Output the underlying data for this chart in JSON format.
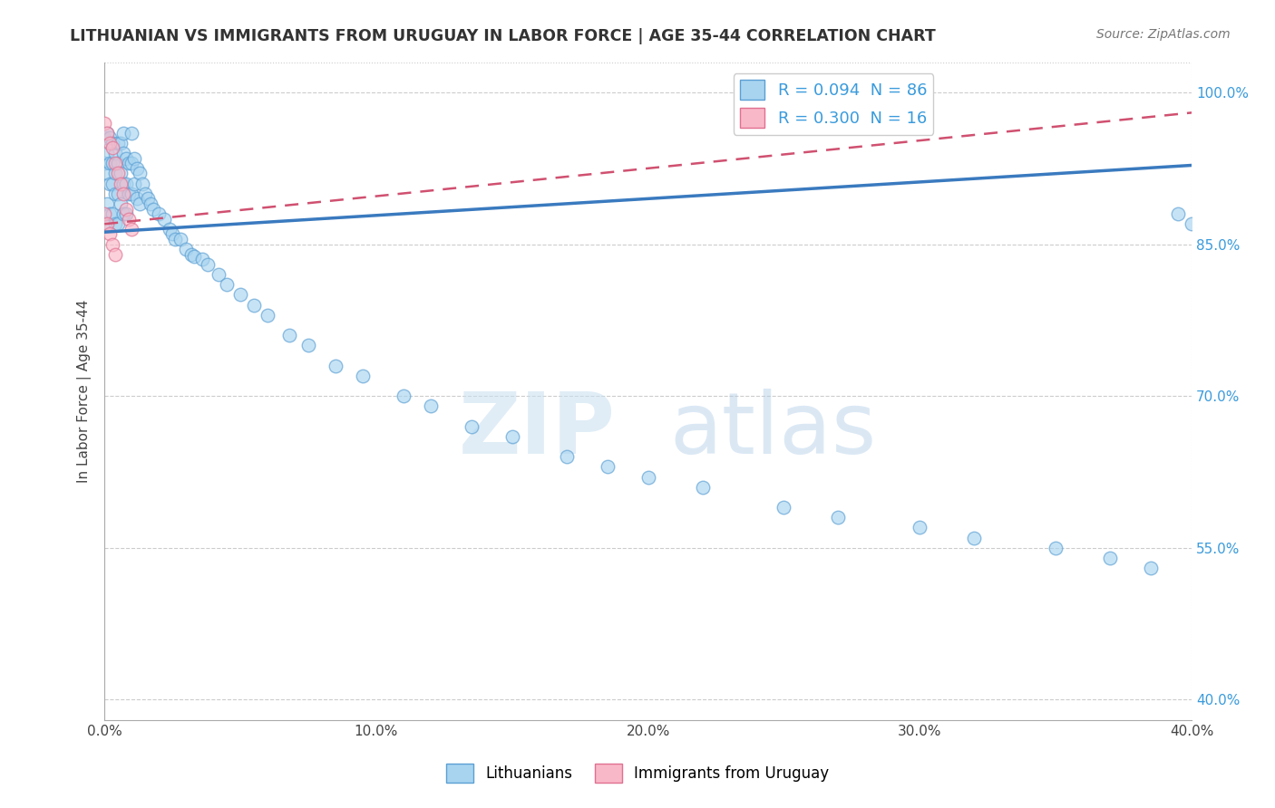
{
  "title": "LITHUANIAN VS IMMIGRANTS FROM URUGUAY IN LABOR FORCE | AGE 35-44 CORRELATION CHART",
  "source": "Source: ZipAtlas.com",
  "ylabel": "In Labor Force | Age 35-44",
  "xlim": [
    0.0,
    0.4
  ],
  "ylim": [
    0.38,
    1.03
  ],
  "yticks": [
    0.4,
    0.55,
    0.7,
    0.85,
    1.0
  ],
  "xticks": [
    0.0,
    0.1,
    0.2,
    0.3,
    0.4
  ],
  "blue_R": 0.094,
  "blue_N": 86,
  "pink_R": 0.3,
  "pink_N": 16,
  "blue_color": "#a8d4f0",
  "pink_color": "#f9b8c8",
  "blue_edge_color": "#5b9fd4",
  "pink_edge_color": "#e07090",
  "blue_line_color": "#3a7abf",
  "pink_line_color": "#d05070",
  "watermark_zip": "ZIP",
  "watermark_atlas": "atlas",
  "legend_labels": [
    "Lithuanians",
    "Immigrants from Uruguay"
  ],
  "blue_scatter_x": [
    0.0,
    0.0,
    0.0,
    0.001,
    0.001,
    0.001,
    0.001,
    0.002,
    0.002,
    0.002,
    0.002,
    0.003,
    0.003,
    0.003,
    0.003,
    0.004,
    0.004,
    0.004,
    0.004,
    0.005,
    0.005,
    0.005,
    0.005,
    0.006,
    0.006,
    0.006,
    0.007,
    0.007,
    0.007,
    0.007,
    0.008,
    0.008,
    0.008,
    0.009,
    0.009,
    0.01,
    0.01,
    0.01,
    0.011,
    0.011,
    0.012,
    0.012,
    0.013,
    0.013,
    0.014,
    0.015,
    0.016,
    0.017,
    0.018,
    0.02,
    0.022,
    0.024,
    0.025,
    0.026,
    0.028,
    0.03,
    0.032,
    0.033,
    0.036,
    0.038,
    0.042,
    0.045,
    0.05,
    0.055,
    0.06,
    0.068,
    0.075,
    0.085,
    0.095,
    0.11,
    0.12,
    0.135,
    0.15,
    0.17,
    0.185,
    0.2,
    0.22,
    0.25,
    0.27,
    0.3,
    0.32,
    0.35,
    0.37,
    0.385,
    0.395,
    0.4
  ],
  "blue_scatter_y": [
    0.955,
    0.93,
    0.87,
    0.96,
    0.94,
    0.92,
    0.89,
    0.955,
    0.93,
    0.91,
    0.88,
    0.95,
    0.93,
    0.91,
    0.88,
    0.94,
    0.92,
    0.9,
    0.87,
    0.95,
    0.93,
    0.9,
    0.87,
    0.95,
    0.92,
    0.89,
    0.96,
    0.94,
    0.91,
    0.88,
    0.935,
    0.91,
    0.88,
    0.93,
    0.9,
    0.96,
    0.93,
    0.9,
    0.935,
    0.91,
    0.925,
    0.895,
    0.92,
    0.89,
    0.91,
    0.9,
    0.895,
    0.89,
    0.885,
    0.88,
    0.875,
    0.865,
    0.86,
    0.855,
    0.855,
    0.845,
    0.84,
    0.838,
    0.835,
    0.83,
    0.82,
    0.81,
    0.8,
    0.79,
    0.78,
    0.76,
    0.75,
    0.73,
    0.72,
    0.7,
    0.69,
    0.67,
    0.66,
    0.64,
    0.63,
    0.62,
    0.61,
    0.59,
    0.58,
    0.57,
    0.56,
    0.55,
    0.54,
    0.53,
    0.88,
    0.87
  ],
  "pink_scatter_x": [
    0.0,
    0.0,
    0.001,
    0.001,
    0.002,
    0.002,
    0.003,
    0.003,
    0.004,
    0.004,
    0.005,
    0.006,
    0.007,
    0.008,
    0.009,
    0.01
  ],
  "pink_scatter_y": [
    0.97,
    0.88,
    0.96,
    0.87,
    0.95,
    0.86,
    0.945,
    0.85,
    0.93,
    0.84,
    0.92,
    0.91,
    0.9,
    0.885,
    0.875,
    0.865
  ],
  "blue_line_x0": 0.0,
  "blue_line_x1": 0.4,
  "blue_line_y0": 0.862,
  "blue_line_y1": 0.928,
  "pink_line_x0": 0.0,
  "pink_line_x1": 0.4,
  "pink_line_y0": 0.87,
  "pink_line_y1": 0.98
}
